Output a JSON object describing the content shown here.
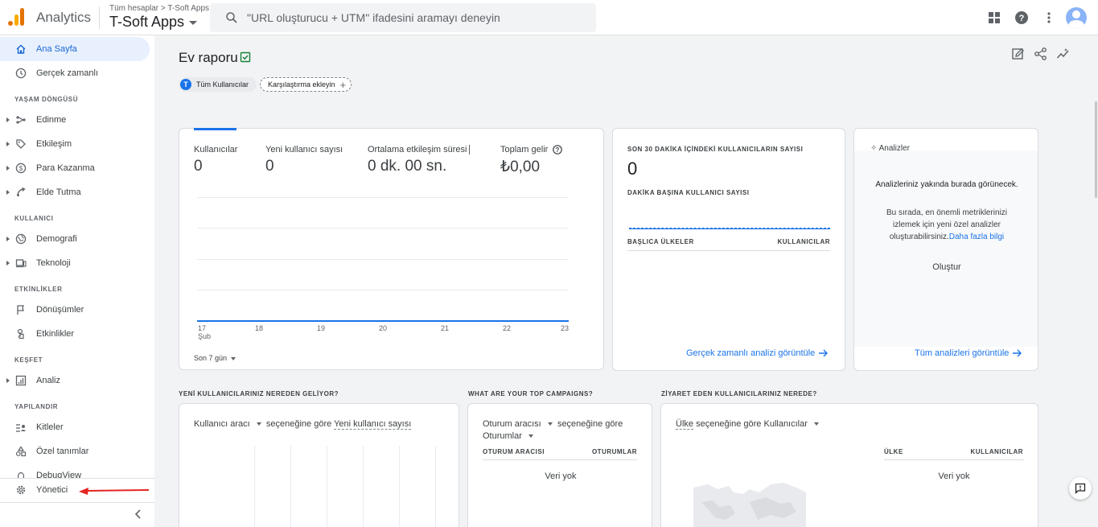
{
  "topbar": {
    "app_name": "Analytics",
    "account_crumb": "Tüm hesaplar > T-Soft Apps",
    "property_name": "T-Soft Apps",
    "search_placeholder": "\"URL oluşturucu + UTM\" ifadesini aramayı deneyin",
    "icons": [
      "apps-icon",
      "help-icon",
      "more-vert-icon",
      "account-avatar"
    ]
  },
  "sidebar": {
    "home": "Ana Sayfa",
    "realtime": "Gerçek zamanlı",
    "sections": {
      "lifecycle": "YAŞAM DÖNGÜSÜ",
      "user": "KULLANICI",
      "events": "ETKİNLİKLER",
      "explore": "KEŞFET",
      "configure": "YAPILANDIR"
    },
    "lifecycle_items": [
      "Edinme",
      "Etkileşim",
      "Para Kazanma",
      "Elde Tutma"
    ],
    "user_items": [
      "Demografi",
      "Teknoloji"
    ],
    "event_items": [
      "Dönüşümler",
      "Etkinlikler"
    ],
    "explore_items": [
      "Analiz"
    ],
    "configure_items": [
      "Kitleler",
      "Özel tanımlar",
      "DebugView"
    ],
    "admin": "Yönetici"
  },
  "report": {
    "title": "Ev raporu",
    "chip_users_initial": "T",
    "chip_users": "Tüm Kullanıcılar",
    "chip_compare": "Karşılaştırma ekleyin"
  },
  "overview": {
    "metrics": [
      {
        "label": "Kullanıcılar",
        "value": "0"
      },
      {
        "label": "Yeni kullanıcı sayısı",
        "value": "0"
      },
      {
        "label": "Ortalama etkileşim süresi",
        "value": "0 dk. 00 sn."
      },
      {
        "label": "Toplam gelir",
        "value": "₺0,00"
      }
    ],
    "x_ticks": [
      "17",
      "18",
      "19",
      "20",
      "21",
      "22",
      "23"
    ],
    "x_tick_sub": "Şub",
    "date_range": "Son 7 gün"
  },
  "realtime_card": {
    "title": "SON 30 DAKİKA İÇİNDEKİ KULLANICILARIN SAYISI",
    "value": "0",
    "subtitle": "DAKİKA BAŞINA KULLANICI SAYISI",
    "col_left": "BAŞLICA ÜLKELER",
    "col_right": "KULLANICILAR",
    "link": "Gerçek zamanlı analizi görüntüle"
  },
  "insights_card": {
    "header": "Analizler",
    "line1": "Analizleriniz yakında burada görünecek.",
    "line2": "Bu sırada, en önemli metriklerinizi izlemek için yeni özel analizler oluşturabilirsiniz.",
    "line2_link": "Daha fazla bilgi",
    "create": "Oluştur",
    "link": "Tüm analizleri görüntüle"
  },
  "bottom": {
    "section1_title": "YENİ KULLANICILARINIZ NEREDEN GELİYOR?",
    "section1_sel": "Kullanıcı aracı",
    "section1_mid": "seçeneğine göre",
    "section1_metric": "Yeni kullanıcı sayısı",
    "section2_title": "WHAT ARE YOUR TOP CAMPAIGNS?",
    "section2_sel": "Oturum aracısı",
    "section2_mid": "seçeneğine göre",
    "section2_metric": "Oturumlar",
    "section2_col_left": "OTURUM ARACISI",
    "section2_col_right": "OTURUMLAR",
    "section2_no_data": "Veri yok",
    "section3_title": "ZİYARET EDEN KULLANICILARINIZ NEREDE?",
    "section3_sel": "Ülke",
    "section3_mid": "seçeneğine göre",
    "section3_metric": "Kullanıcılar",
    "section3_col_left": "ÜLKE",
    "section3_col_right": "KULLANICILAR",
    "section3_no_data": "Veri yok"
  },
  "colors": {
    "accent": "#1a73e8",
    "annotation_arrow": "#e52521"
  }
}
